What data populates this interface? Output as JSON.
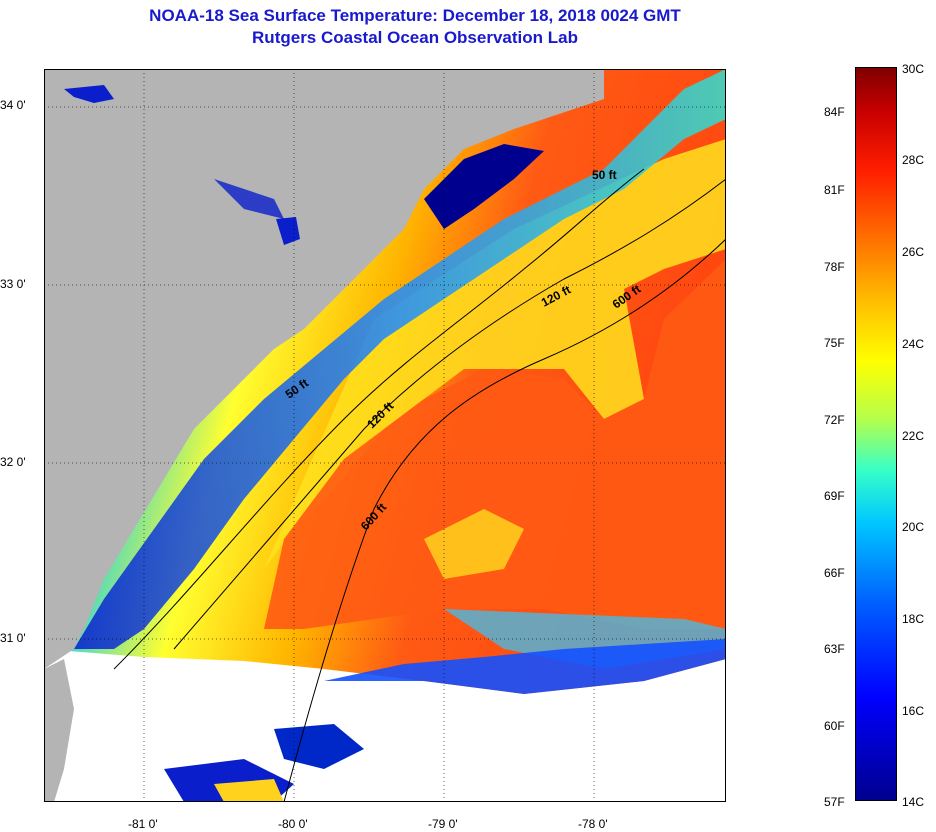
{
  "title": {
    "line1": "NOAA-18 Sea Surface Temperature:  December 18, 2018 0024 GMT",
    "line2": "Rutgers Coastal Ocean Observation Lab"
  },
  "map": {
    "x_ticks": [
      "-81 0'",
      "-80 0'",
      "-79 0'",
      "-78 0'"
    ],
    "y_ticks": [
      "34 0'",
      "33 0'",
      "32 0'",
      "31 0'"
    ],
    "contours": [
      {
        "label": "50 ft"
      },
      {
        "label": "50 ft"
      },
      {
        "label": "120 ft"
      },
      {
        "label": "120 ft"
      },
      {
        "label": "600 ft"
      },
      {
        "label": "600 ft"
      }
    ],
    "colors": {
      "land": "#b4b4b4",
      "no_data": "#ffffff",
      "coastal_cold": "#0a1ecc",
      "shelf_warm": "#ffdc00",
      "gulf_stream": "#ff5a14"
    }
  },
  "colorbar": {
    "fahrenheit": [
      "84F",
      "81F",
      "78F",
      "75F",
      "72F",
      "69F",
      "66F",
      "63F",
      "60F",
      "57F"
    ],
    "celsius": [
      "30C",
      "28C",
      "26C",
      "24C",
      "22C",
      "20C",
      "18C",
      "16C",
      "14C"
    ],
    "min_c": 14,
    "max_c": 30
  }
}
